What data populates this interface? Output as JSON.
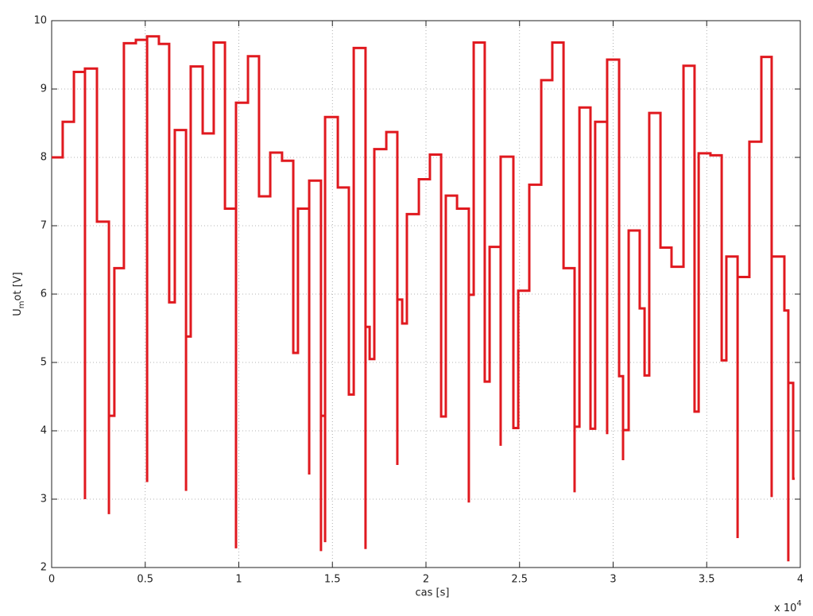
{
  "chart_data": {
    "type": "line",
    "drawstyle": "steps",
    "xlabel": "cas [s]",
    "ylabel": [
      "U",
      "m",
      "ot [V]"
    ],
    "x_multiplier": [
      "x 10",
      "4"
    ],
    "xlim": [
      0,
      4
    ],
    "ylim": [
      2,
      10
    ],
    "xticks": [
      0,
      0.5,
      1,
      1.5,
      2,
      2.5,
      3,
      3.5,
      4
    ],
    "yticks": [
      2,
      3,
      4,
      5,
      6,
      7,
      8,
      9,
      10
    ],
    "grid": true,
    "series": [
      {
        "color": "#e0191f",
        "x": [
          0,
          0.059,
          0.119,
          0.178,
          0.178,
          0.242,
          0.306,
          0.306,
          0.335,
          0.386,
          0.45,
          0.51,
          0.51,
          0.573,
          0.628,
          0.658,
          0.718,
          0.718,
          0.743,
          0.807,
          0.866,
          0.926,
          0.985,
          0.985,
          1.049,
          1.108,
          1.168,
          1.231,
          1.291,
          1.316,
          1.376,
          1.376,
          1.439,
          1.439,
          1.461,
          1.461,
          1.529,
          1.588,
          1.614,
          1.677,
          1.677,
          1.699,
          1.724,
          1.788,
          1.847,
          1.847,
          1.873,
          1.898,
          1.962,
          2.021,
          2.081,
          2.106,
          2.166,
          2.229,
          2.229,
          2.255,
          2.314,
          2.34,
          2.399,
          2.399,
          2.467,
          2.493,
          2.552,
          2.616,
          2.675,
          2.735,
          2.794,
          2.794,
          2.82,
          2.879,
          2.904,
          2.968,
          2.968,
          3.032,
          3.053,
          3.053,
          3.083,
          3.142,
          3.168,
          3.193,
          3.253,
          3.312,
          3.376,
          3.435,
          3.457,
          3.52,
          3.58,
          3.605,
          3.665,
          3.665,
          3.728,
          3.792,
          3.847,
          3.847,
          3.915,
          3.936,
          3.936,
          3.962,
          3.97
        ],
        "values": [
          8.0,
          8.52,
          9.25,
          3.0,
          9.3,
          7.06,
          2.78,
          4.22,
          6.38,
          9.67,
          9.72,
          3.25,
          9.77,
          9.66,
          5.88,
          8.4,
          3.12,
          5.38,
          9.33,
          8.35,
          9.68,
          7.25,
          2.28,
          8.8,
          9.48,
          7.43,
          8.07,
          7.95,
          5.14,
          7.25,
          3.36,
          7.66,
          2.24,
          4.22,
          2.37,
          8.59,
          7.56,
          4.53,
          9.6,
          2.27,
          5.52,
          5.05,
          8.12,
          8.37,
          3.5,
          5.92,
          5.57,
          7.17,
          7.68,
          8.04,
          4.21,
          7.44,
          7.25,
          2.95,
          5.99,
          9.68,
          4.72,
          6.69,
          3.78,
          8.01,
          4.04,
          6.05,
          7.6,
          9.13,
          9.68,
          6.38,
          3.1,
          4.06,
          8.73,
          4.03,
          8.52,
          3.95,
          9.43,
          4.8,
          3.57,
          4.01,
          6.93,
          5.79,
          4.81,
          8.65,
          6.68,
          6.4,
          9.34,
          4.28,
          8.06,
          8.03,
          5.03,
          6.55,
          2.43,
          6.25,
          8.23,
          9.47,
          3.03,
          6.55,
          5.76,
          2.09,
          4.7,
          3.3,
          3.3
        ]
      }
    ]
  }
}
